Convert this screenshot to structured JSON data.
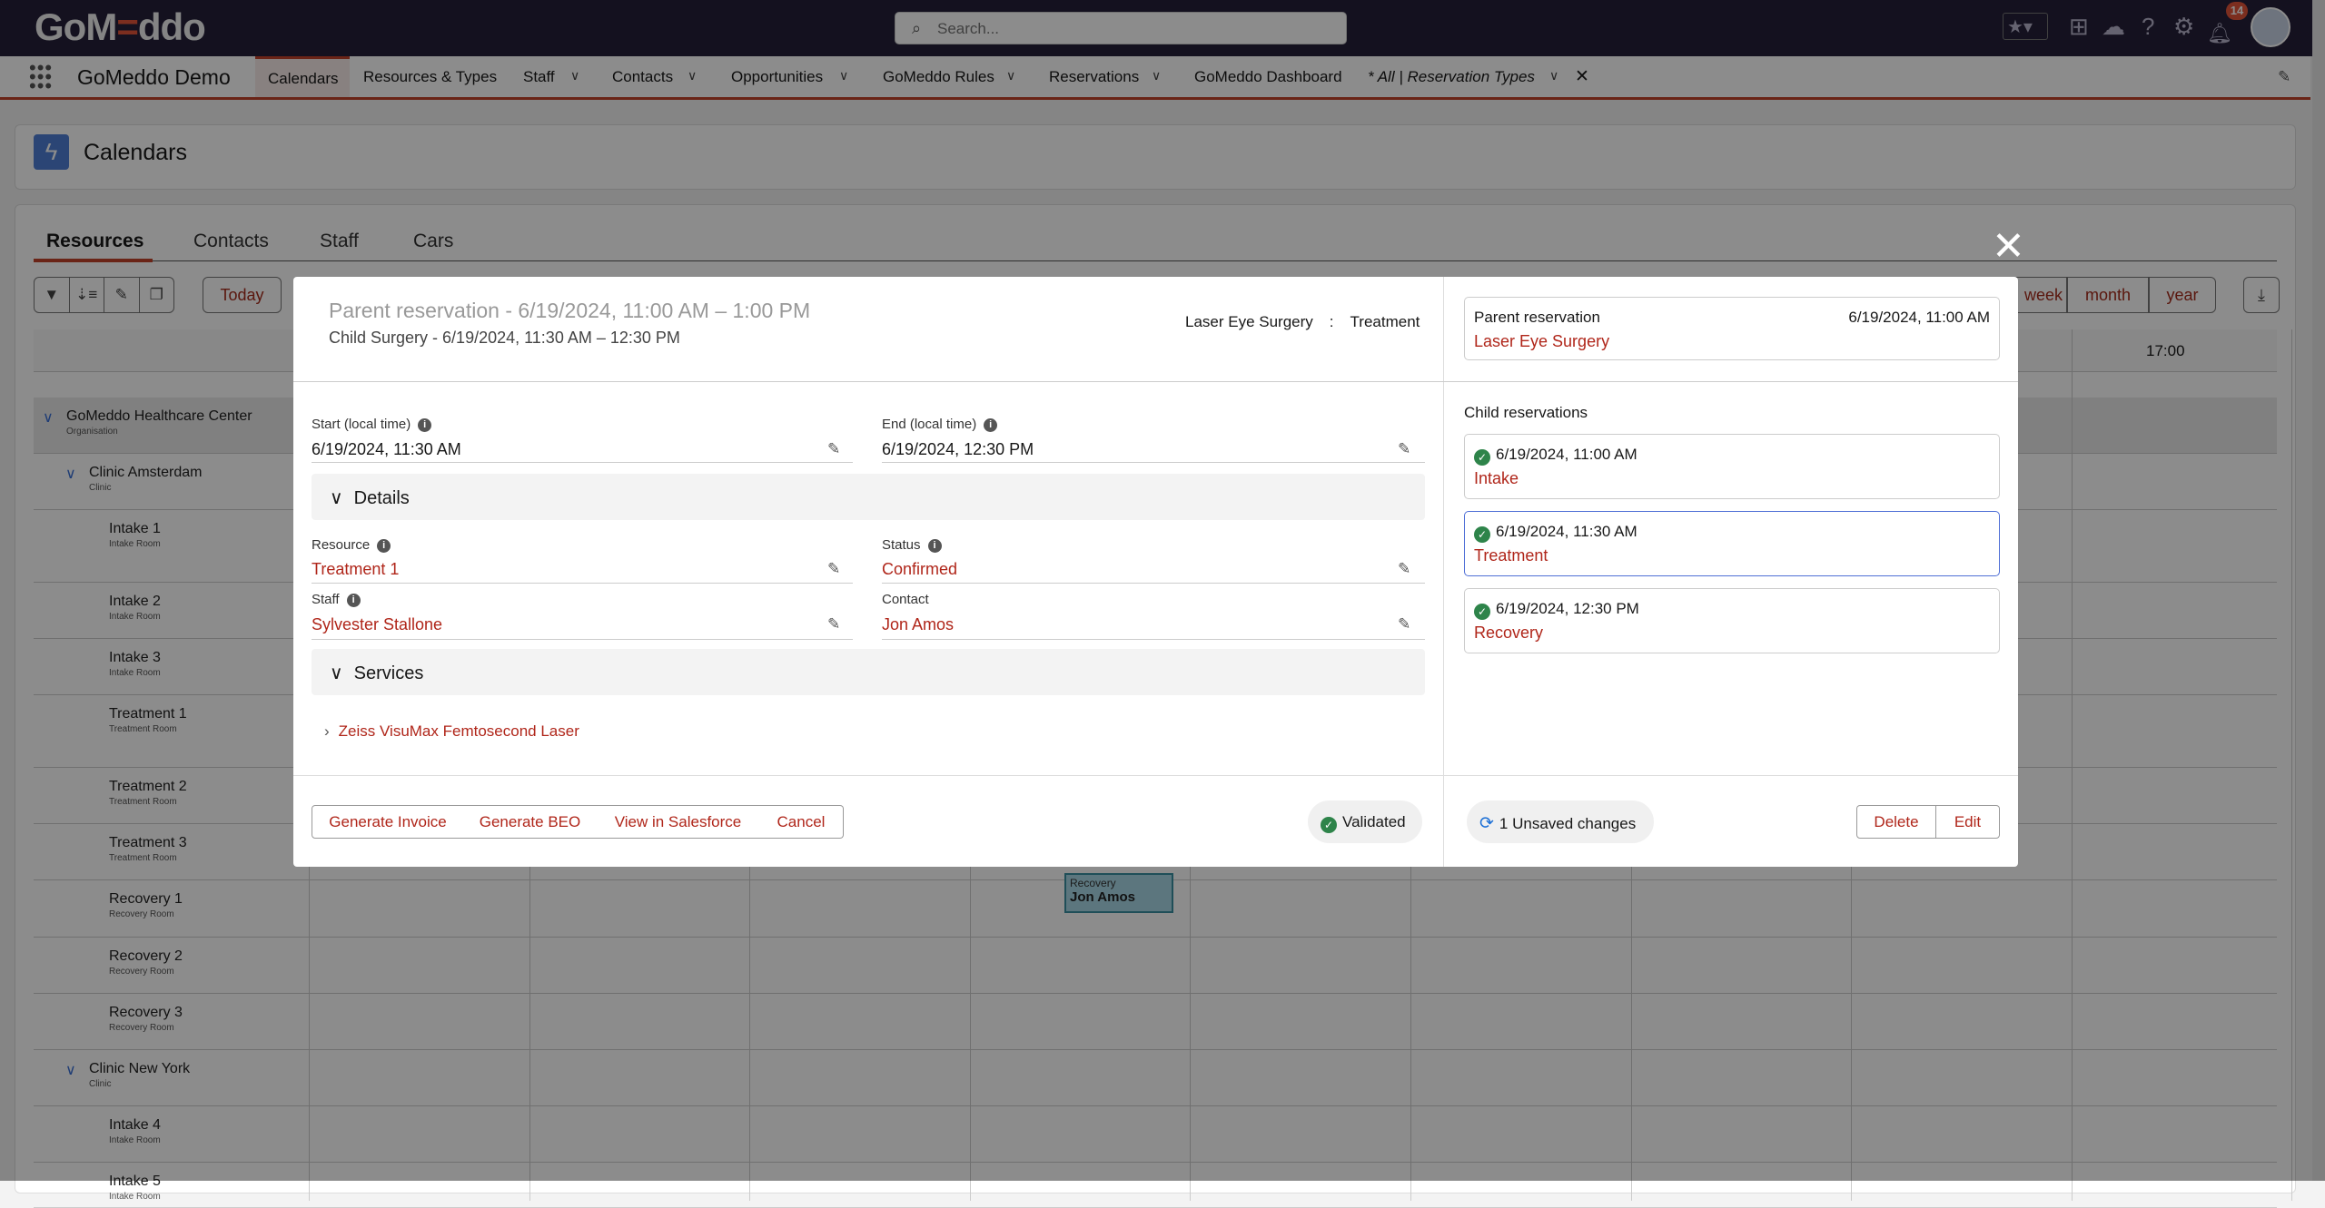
{
  "topbar": {
    "logo": "GoMeddo",
    "search_placeholder": "Search...",
    "notifications_count": "14"
  },
  "nav": {
    "app_name": "GoMeddo Demo",
    "items": [
      "Calendars",
      "Resources & Types",
      "Staff",
      "Contacts",
      "Opportunities",
      "GoMeddo Rules",
      "Reservations",
      "GoMeddo Dashboard",
      "* All | Reservation Types"
    ]
  },
  "page": {
    "title": "Calendars"
  },
  "tabs": [
    "Resources",
    "Contacts",
    "Staff",
    "Cars"
  ],
  "toolbar": {
    "today": "Today",
    "views": [
      "week",
      "month",
      "year"
    ]
  },
  "calendar": {
    "time_label": "17:00",
    "rows": [
      {
        "name": "GoMeddo Healthcare Center",
        "sub": "Organisation",
        "level": 0
      },
      {
        "name": "Clinic Amsterdam",
        "sub": "Clinic",
        "level": 1
      },
      {
        "name": "Intake 1",
        "sub": "Intake Room",
        "level": 2
      },
      {
        "name": "Intake 2",
        "sub": "Intake Room",
        "level": 2
      },
      {
        "name": "Intake 3",
        "sub": "Intake Room",
        "level": 2
      },
      {
        "name": "Treatment 1",
        "sub": "Treatment Room",
        "level": 2
      },
      {
        "name": "Treatment 2",
        "sub": "Treatment Room",
        "level": 2
      },
      {
        "name": "Treatment 3",
        "sub": "Treatment Room",
        "level": 2
      },
      {
        "name": "Recovery 1",
        "sub": "Recovery Room",
        "level": 2
      },
      {
        "name": "Recovery 2",
        "sub": "Recovery Room",
        "level": 2
      },
      {
        "name": "Recovery 3",
        "sub": "Recovery Room",
        "level": 2
      },
      {
        "name": "Clinic New York",
        "sub": "Clinic",
        "level": 1
      },
      {
        "name": "Intake 4",
        "sub": "Intake Room",
        "level": 2
      },
      {
        "name": "Intake 5",
        "sub": "Intake Room",
        "level": 2
      }
    ],
    "event": {
      "type": "Recovery",
      "contact": "Jon Amos"
    }
  },
  "modal": {
    "title": "Parent reservation - 6/19/2024, 11:00 AM – 1:00 PM",
    "subtitle": "Child Surgery - 6/19/2024, 11:30 AM – 12:30 PM",
    "type_left": "Laser Eye Surgery",
    "type_sep": ":",
    "type_right": "Treatment",
    "start_label": "Start (local time)",
    "start_value": "6/19/2024, 11:30 AM",
    "end_label": "End (local time)",
    "end_value": "6/19/2024, 12:30 PM",
    "details": "Details",
    "resource_label": "Resource",
    "resource_value": "Treatment 1",
    "status_label": "Status",
    "status_value": "Confirmed",
    "staff_label": "Staff",
    "staff_value": "Sylvester Stallone",
    "contact_label": "Contact",
    "contact_value": "Jon Amos",
    "services": "Services",
    "service_item": "Zeiss VisuMax Femtosecond Laser",
    "buttons": [
      "Generate Invoice",
      "Generate BEO",
      "View in Salesforce",
      "Cancel"
    ],
    "validated": "Validated",
    "parent": {
      "label": "Parent reservation",
      "date": "6/19/2024, 11:00 AM",
      "name": "Laser Eye Surgery"
    },
    "child_title": "Child reservations",
    "children": [
      {
        "date": "6/19/2024, 11:00 AM",
        "name": "Intake",
        "selected": false
      },
      {
        "date": "6/19/2024, 11:30 AM",
        "name": "Treatment",
        "selected": true
      },
      {
        "date": "6/19/2024, 12:30 PM",
        "name": "Recovery",
        "selected": false
      }
    ],
    "unsaved": "1 Unsaved changes",
    "delete": "Delete",
    "edit": "Edit"
  },
  "colors": {
    "accent": "#c2432a",
    "link": "#b0261a",
    "validated": "#2e844a",
    "selected_border": "#4f6fd6"
  }
}
